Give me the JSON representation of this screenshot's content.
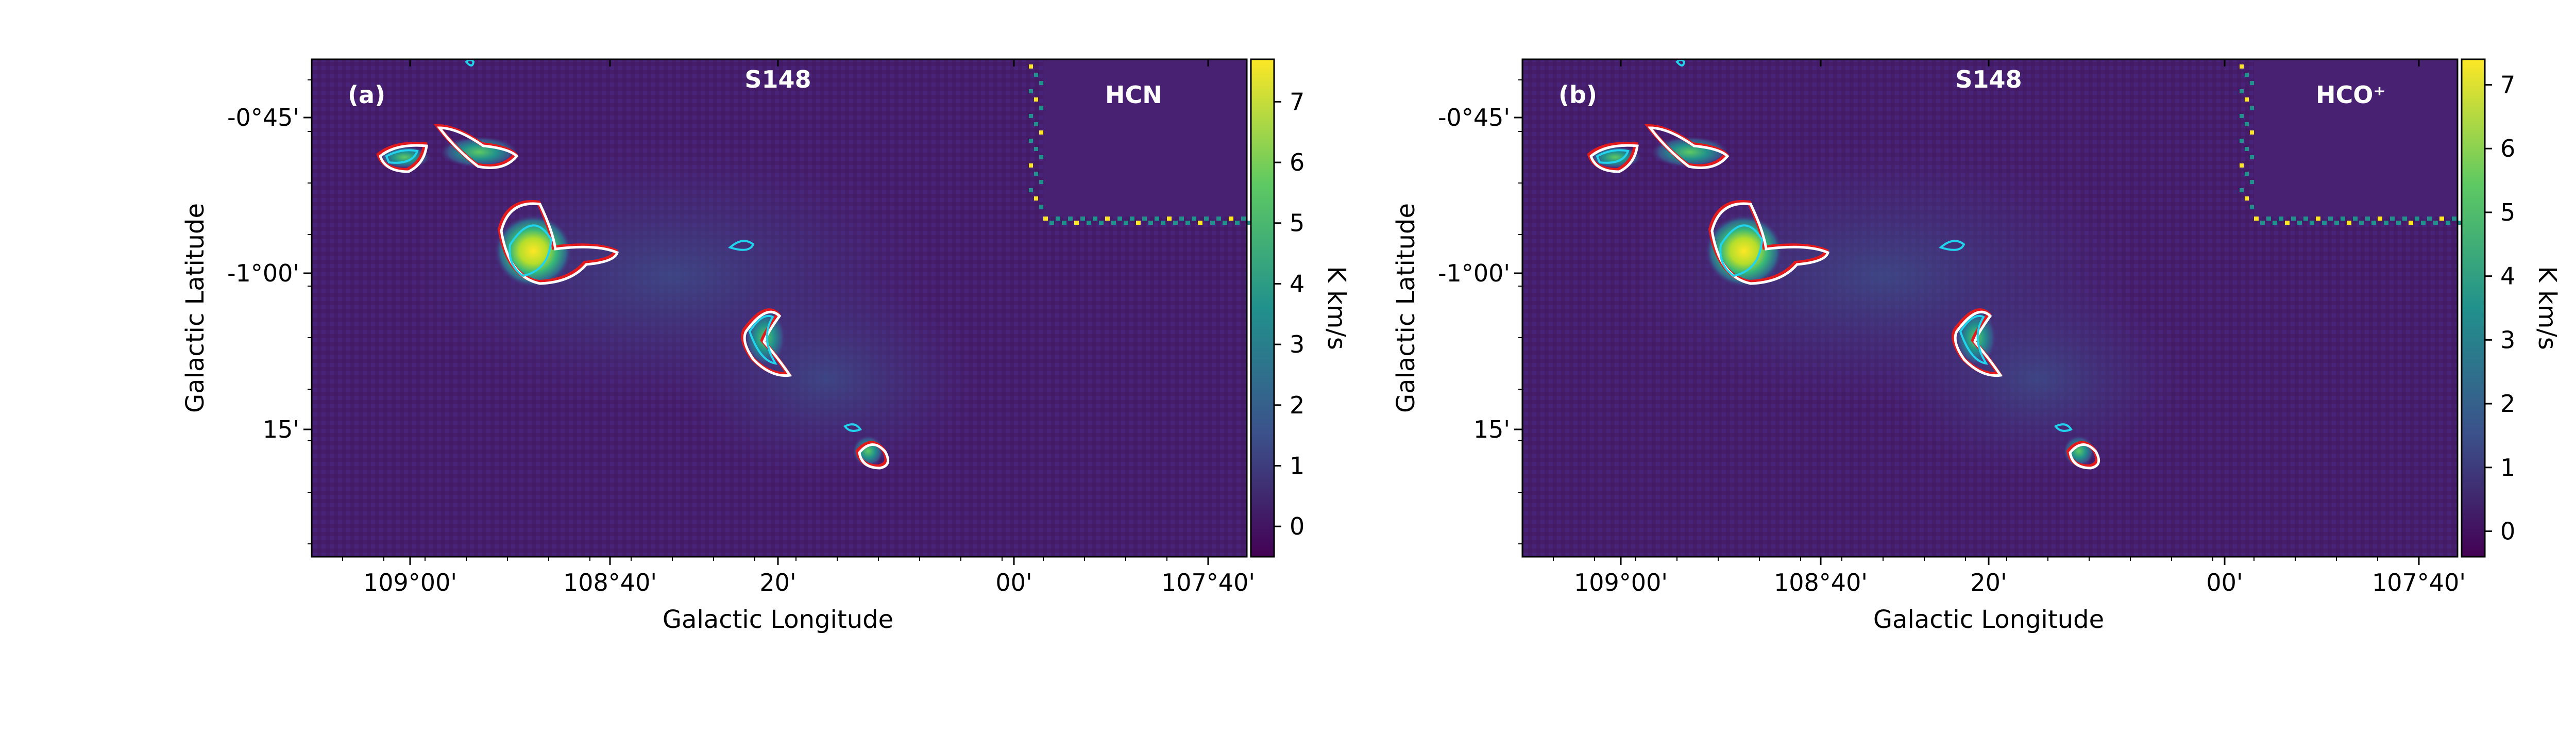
{
  "chart_data": [
    {
      "type": "heatmap",
      "panel_label": "(a)",
      "title": "S148",
      "molecule": "HCN",
      "xlabel": "Galactic Longitude",
      "ylabel": "Galactic Latitude",
      "x_tick_labels": [
        "109°00'",
        "108°40'",
        "20'",
        "00'",
        "107°40'"
      ],
      "y_tick_labels": [
        "-0°45'",
        "-1°00'",
        "15'"
      ],
      "colorbar": {
        "label": "K km/s",
        "range": [
          -0.5,
          7.7
        ],
        "ticks": [
          "0",
          "1",
          "2",
          "3",
          "4",
          "5",
          "6",
          "7"
        ]
      },
      "colormap": [
        "#440154",
        "#3b528b",
        "#21918c",
        "#5ec962",
        "#fde725"
      ],
      "contour_colors": {
        "red": "#e31a1c",
        "white": "#ffffff",
        "cyan": "#22d3ee"
      },
      "grid": false
    },
    {
      "type": "heatmap",
      "panel_label": "(b)",
      "title": "S148",
      "molecule": "HCO⁺",
      "xlabel": "Galactic Longitude",
      "ylabel": "Galactic Latitude",
      "x_tick_labels": [
        "109°00'",
        "108°40'",
        "20'",
        "00'",
        "107°40'"
      ],
      "y_tick_labels": [
        "-0°45'",
        "-1°00'",
        "15'"
      ],
      "colorbar": {
        "label": "K km/s",
        "range": [
          -0.4,
          7.4
        ],
        "ticks": [
          "0",
          "1",
          "2",
          "3",
          "4",
          "5",
          "6",
          "7"
        ]
      },
      "colormap": [
        "#440154",
        "#3b528b",
        "#21918c",
        "#5ec962",
        "#fde725"
      ],
      "contour_colors": {
        "red": "#e31a1c",
        "white": "#ffffff",
        "cyan": "#22d3ee"
      },
      "grid": false
    }
  ]
}
